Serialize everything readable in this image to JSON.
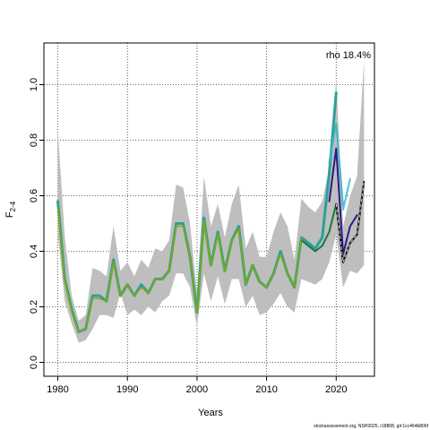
{
  "chart_data": {
    "type": "line",
    "xlabel": "Years",
    "ylabel_base": "F",
    "ylabel_sub": "2-4",
    "annotation": "rho 18.4%",
    "footer": "stockassessment.org, NSH2025, r18808, git:1cc464b806f",
    "xlim": [
      1978,
      2025.5
    ],
    "ylim": [
      -0.05,
      1.15
    ],
    "x_ticks": [
      1980,
      1990,
      2000,
      2010,
      2020
    ],
    "y_ticks": [
      0.0,
      0.2,
      0.4,
      0.6,
      0.8,
      1.0
    ],
    "y_tick_labels": [
      "0.0",
      "0.2",
      "0.4",
      "0.6",
      "0.8",
      "1.0"
    ],
    "grid": true,
    "band_color": "#bebebe",
    "band": {
      "x": [
        1980,
        1981,
        1982,
        1983,
        1984,
        1985,
        1986,
        1987,
        1988,
        1989,
        1990,
        1991,
        1992,
        1993,
        1994,
        1995,
        1996,
        1997,
        1998,
        1999,
        2000,
        2001,
        2002,
        2003,
        2004,
        2005,
        2006,
        2007,
        2008,
        2009,
        2010,
        2011,
        2012,
        2013,
        2014,
        2015,
        2016,
        2017,
        2018,
        2019,
        2020,
        2021,
        2022,
        2023,
        2024
      ],
      "lower": [
        0.46,
        0.22,
        0.14,
        0.07,
        0.08,
        0.12,
        0.17,
        0.17,
        0.16,
        0.25,
        0.17,
        0.19,
        0.17,
        0.2,
        0.18,
        0.22,
        0.24,
        0.32,
        0.32,
        0.27,
        0.13,
        0.32,
        0.22,
        0.31,
        0.21,
        0.3,
        0.3,
        0.2,
        0.24,
        0.17,
        0.18,
        0.21,
        0.25,
        0.2,
        0.18,
        0.3,
        0.29,
        0.28,
        0.3,
        0.36,
        0.46,
        0.27,
        0.33,
        0.32,
        0.35
      ],
      "upper": [
        0.84,
        0.45,
        0.24,
        0.15,
        0.17,
        0.34,
        0.33,
        0.31,
        0.49,
        0.33,
        0.36,
        0.31,
        0.37,
        0.34,
        0.41,
        0.4,
        0.44,
        0.64,
        0.63,
        0.5,
        0.25,
        0.67,
        0.49,
        0.57,
        0.45,
        0.57,
        0.64,
        0.41,
        0.47,
        0.38,
        0.38,
        0.47,
        0.54,
        0.49,
        0.37,
        0.59,
        0.56,
        0.54,
        0.58,
        0.7,
        1.02,
        0.49,
        0.6,
        0.67,
        1.09
      ]
    },
    "series": [
      {
        "color": "#2aa198",
        "width": 3,
        "x": [
          1980,
          1981,
          1982,
          1983,
          1984,
          1985,
          1986,
          1987,
          1988,
          1989,
          1990,
          1991,
          1992,
          1993,
          1994,
          1995,
          1996,
          1997,
          1998,
          1999,
          2000,
          2001,
          2002,
          2003,
          2004,
          2005,
          2006,
          2007,
          2008,
          2009,
          2010,
          2011,
          2012,
          2013,
          2014,
          2015,
          2016,
          2017,
          2018,
          2019,
          2020
        ],
        "y": [
          0.58,
          0.3,
          0.19,
          0.11,
          0.12,
          0.24,
          0.24,
          0.22,
          0.37,
          0.24,
          0.28,
          0.24,
          0.28,
          0.25,
          0.3,
          0.3,
          0.33,
          0.5,
          0.5,
          0.38,
          0.18,
          0.52,
          0.35,
          0.47,
          0.33,
          0.44,
          0.49,
          0.28,
          0.35,
          0.29,
          0.27,
          0.32,
          0.4,
          0.32,
          0.27,
          0.45,
          0.43,
          0.41,
          0.45,
          0.68,
          0.97
        ]
      },
      {
        "color": "#41b6c4",
        "width": 2,
        "x": [
          2019,
          2020,
          2021
        ],
        "y": [
          0.72,
          0.86,
          0.56
        ]
      },
      {
        "color": "#4fc3e8",
        "width": 2,
        "x": [
          2021,
          2022
        ],
        "y": [
          0.55,
          0.66
        ]
      },
      {
        "color": "#2a1a8f",
        "width": 2,
        "x": [
          2019,
          2020,
          2021,
          2022,
          2023
        ],
        "y": [
          0.58,
          0.77,
          0.39,
          0.49,
          0.53
        ]
      },
      {
        "color": "#1b7837",
        "width": 2,
        "x": [
          2015,
          2016,
          2017,
          2018,
          2019,
          2020
        ],
        "y": [
          0.44,
          0.42,
          0.4,
          0.42,
          0.47,
          0.57
        ]
      },
      {
        "color": "#8aa800",
        "width": 1.5,
        "x": [
          1980,
          1981,
          1982,
          1983,
          1984,
          1985,
          1986,
          1987,
          1988,
          1989,
          1990,
          1991,
          1992,
          1993,
          1994,
          1995,
          1996,
          1997,
          1998,
          1999,
          2000,
          2001,
          2002,
          2003,
          2004,
          2005,
          2006,
          2007,
          2008,
          2009,
          2010,
          2011,
          2012,
          2013,
          2014,
          2015
        ],
        "y": [
          0.56,
          0.29,
          0.18,
          0.11,
          0.12,
          0.23,
          0.23,
          0.22,
          0.36,
          0.24,
          0.28,
          0.24,
          0.27,
          0.25,
          0.3,
          0.3,
          0.33,
          0.49,
          0.49,
          0.38,
          0.18,
          0.51,
          0.35,
          0.46,
          0.33,
          0.44,
          0.48,
          0.28,
          0.35,
          0.29,
          0.27,
          0.32,
          0.39,
          0.32,
          0.27,
          0.45
        ]
      },
      {
        "color": "#000000",
        "width": 2,
        "x": [
          2020,
          2021,
          2022,
          2023,
          2024
        ],
        "y": [
          0.57,
          0.36,
          0.43,
          0.46,
          0.65
        ]
      },
      {
        "color": "#cccccc",
        "width": 1,
        "dash": "3,3",
        "x": [
          2020,
          2021,
          2022,
          2023,
          2024
        ],
        "y": [
          0.57,
          0.36,
          0.43,
          0.46,
          0.65
        ]
      }
    ]
  }
}
